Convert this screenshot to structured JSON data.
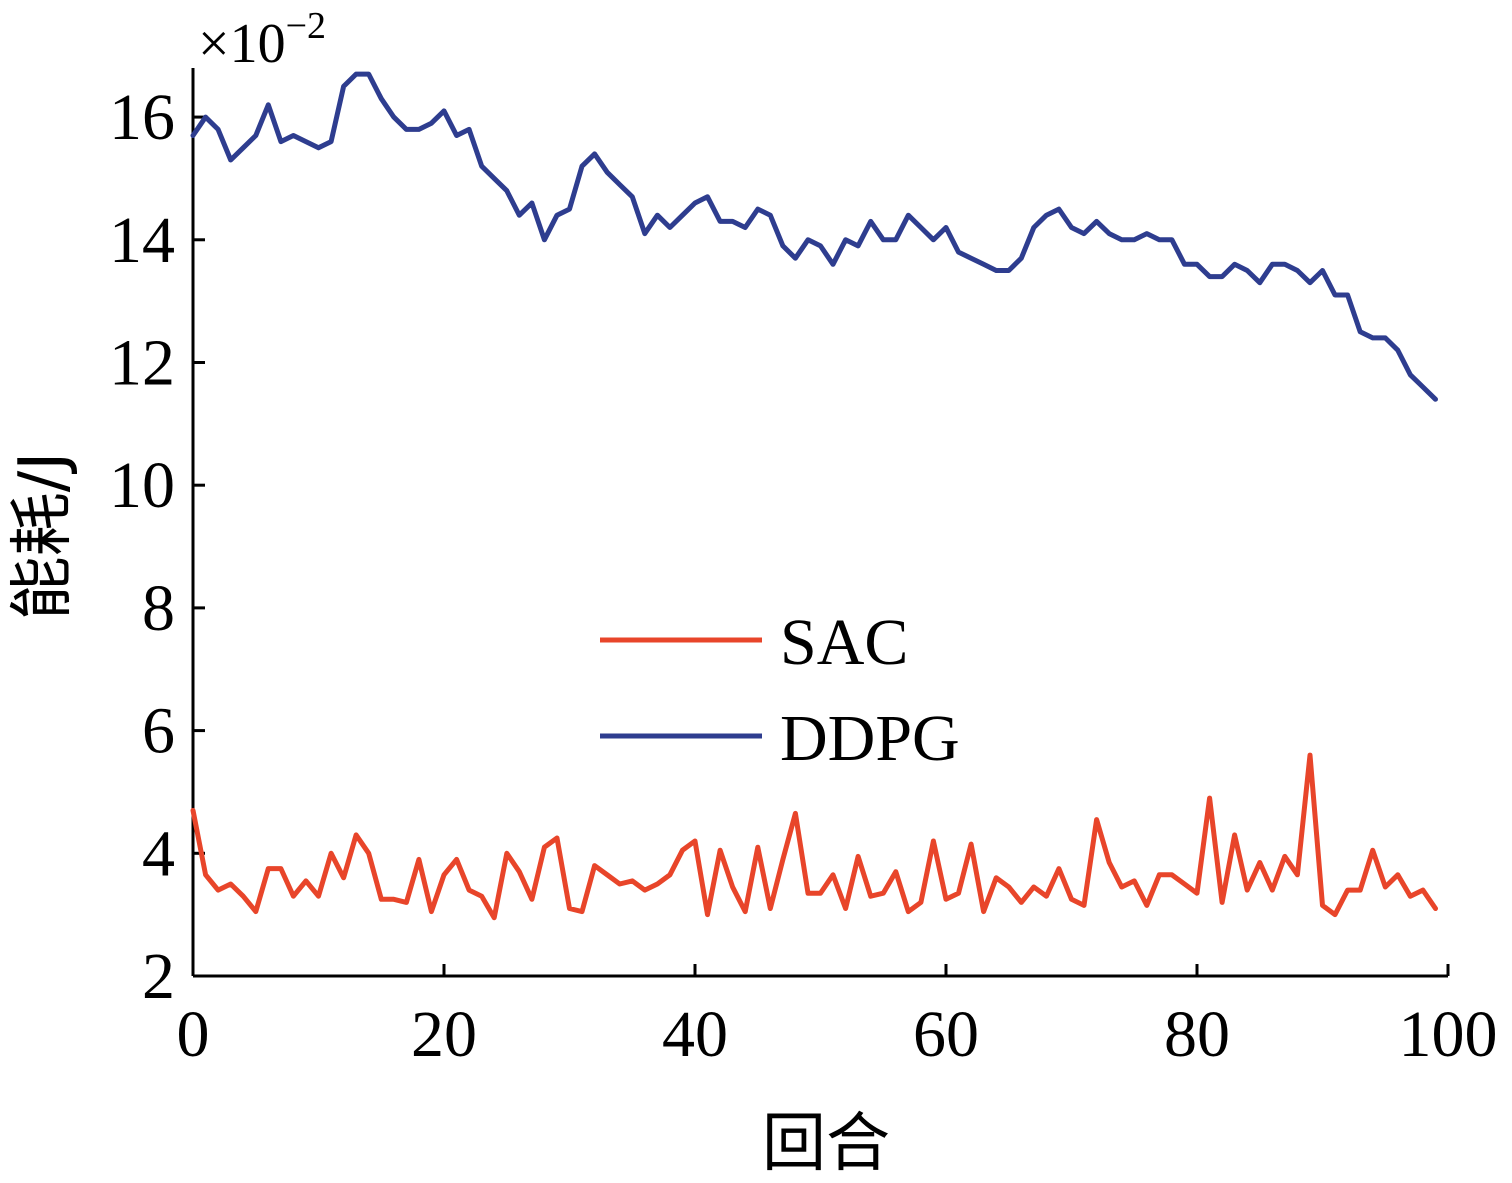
{
  "chart_data": {
    "type": "line",
    "xlabel": "回合",
    "ylabel": "能耗/J",
    "y_multiplier": {
      "base": "×10",
      "exponent": "−2"
    },
    "xlim": [
      0,
      100
    ],
    "ylim": [
      2,
      16.8
    ],
    "x_ticks": [
      0,
      20,
      40,
      60,
      80,
      100
    ],
    "y_ticks": [
      2,
      4,
      6,
      8,
      10,
      12,
      14,
      16
    ],
    "grid": false,
    "legend_position": "center",
    "series": [
      {
        "name": "SAC",
        "color": "#e8452a",
        "values": [
          4.7,
          3.65,
          3.4,
          3.5,
          3.3,
          3.05,
          3.75,
          3.75,
          3.3,
          3.55,
          3.3,
          4.0,
          3.6,
          4.3,
          4.0,
          3.25,
          3.25,
          3.2,
          3.9,
          3.05,
          3.65,
          3.9,
          3.4,
          3.3,
          2.95,
          4.0,
          3.7,
          3.25,
          4.1,
          4.25,
          3.1,
          3.05,
          3.8,
          3.65,
          3.5,
          3.55,
          3.4,
          3.5,
          3.65,
          4.05,
          4.2,
          3.0,
          4.05,
          3.45,
          3.05,
          4.1,
          3.1,
          3.9,
          4.65,
          3.35,
          3.35,
          3.65,
          3.1,
          3.95,
          3.3,
          3.35,
          3.7,
          3.05,
          3.2,
          4.2,
          3.25,
          3.35,
          4.15,
          3.05,
          3.6,
          3.45,
          3.2,
          3.45,
          3.3,
          3.75,
          3.25,
          3.15,
          4.55,
          3.85,
          3.45,
          3.55,
          3.15,
          3.65,
          3.65,
          3.5,
          3.35,
          4.9,
          3.2,
          4.3,
          3.4,
          3.85,
          3.4,
          3.95,
          3.65,
          5.6,
          3.15,
          3.0,
          3.4,
          3.4,
          4.05,
          3.45,
          3.65,
          3.3,
          3.4,
          3.1
        ]
      },
      {
        "name": "DDPG",
        "color": "#2e3d8f",
        "values": [
          15.7,
          16.0,
          15.8,
          15.3,
          15.5,
          15.7,
          16.2,
          15.6,
          15.7,
          15.6,
          15.5,
          15.6,
          16.5,
          16.7,
          16.7,
          16.3,
          16.0,
          15.8,
          15.8,
          15.9,
          16.1,
          15.7,
          15.8,
          15.2,
          15.0,
          14.8,
          14.4,
          14.6,
          14.0,
          14.4,
          14.5,
          15.2,
          15.4,
          15.1,
          14.9,
          14.7,
          14.1,
          14.4,
          14.2,
          14.4,
          14.6,
          14.7,
          14.3,
          14.3,
          14.2,
          14.5,
          14.4,
          13.9,
          13.7,
          14.0,
          13.9,
          13.6,
          14.0,
          13.9,
          14.3,
          14.0,
          14.0,
          14.4,
          14.2,
          14.0,
          14.2,
          13.8,
          13.7,
          13.6,
          13.5,
          13.5,
          13.7,
          14.2,
          14.4,
          14.5,
          14.2,
          14.1,
          14.3,
          14.1,
          14.0,
          14.0,
          14.1,
          14.0,
          14.0,
          13.6,
          13.6,
          13.4,
          13.4,
          13.6,
          13.5,
          13.3,
          13.6,
          13.6,
          13.5,
          13.3,
          13.5,
          13.1,
          13.1,
          12.5,
          12.4,
          12.4,
          12.2,
          11.8,
          11.6,
          11.4
        ]
      }
    ]
  }
}
